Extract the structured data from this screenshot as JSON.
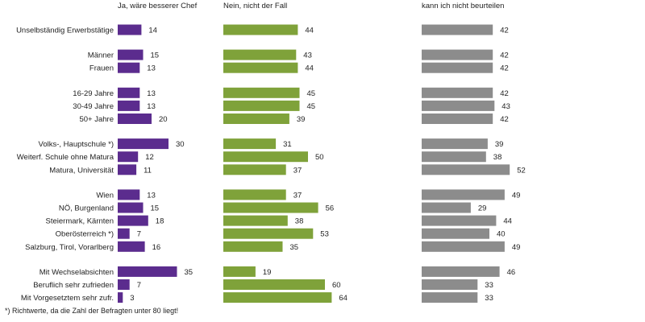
{
  "chart_data": {
    "type": "bar",
    "orientation": "horizontal",
    "panels": [
      {
        "name": "Ja, wäre besserer Chef",
        "color": "#5b2c8e"
      },
      {
        "name": "Nein, nicht der Fall",
        "color": "#7fa23a"
      },
      {
        "name": "kann ich nicht beurteilen",
        "color": "#8c8c8c"
      }
    ],
    "categories": [
      "Unselbständig Erwerbstätige",
      "Männer",
      "Frauen",
      "16-29 Jahre",
      "30-49 Jahre",
      "50+ Jahre",
      "Volks-, Hauptschule *)",
      "Weiterf. Schule ohne Matura",
      "Matura, Universität",
      "Wien",
      "NÖ, Burgenland",
      "Steiermark, Kärnten",
      "Oberösterreich *)",
      "Salzburg, Tirol, Vorarlberg",
      "Mit Wechselabsichten",
      "Beruflich sehr zufrieden",
      "Mit Vorgesetztem sehr zufr."
    ],
    "groups": [
      [
        0
      ],
      [
        1,
        2
      ],
      [
        3,
        4,
        5
      ],
      [
        6,
        7,
        8
      ],
      [
        9,
        10,
        11,
        12,
        13
      ],
      [
        14,
        15,
        16
      ]
    ],
    "series": [
      {
        "name": "Ja, wäre besserer Chef",
        "values": [
          14,
          15,
          13,
          13,
          13,
          20,
          30,
          12,
          11,
          13,
          15,
          18,
          7,
          16,
          35,
          7,
          3
        ]
      },
      {
        "name": "Nein, nicht der Fall",
        "values": [
          44,
          43,
          44,
          45,
          45,
          39,
          31,
          50,
          37,
          37,
          56,
          38,
          53,
          35,
          19,
          60,
          64
        ]
      },
      {
        "name": "kann ich nicht beurteilen",
        "values": [
          42,
          42,
          42,
          42,
          43,
          42,
          39,
          38,
          52,
          49,
          29,
          44,
          40,
          49,
          46,
          33,
          33
        ]
      }
    ],
    "xlim": [
      0,
      100
    ],
    "grid": false
  },
  "footnote": "*) Richtwerte, da die Zahl der Befragten unter 80 liegt!"
}
